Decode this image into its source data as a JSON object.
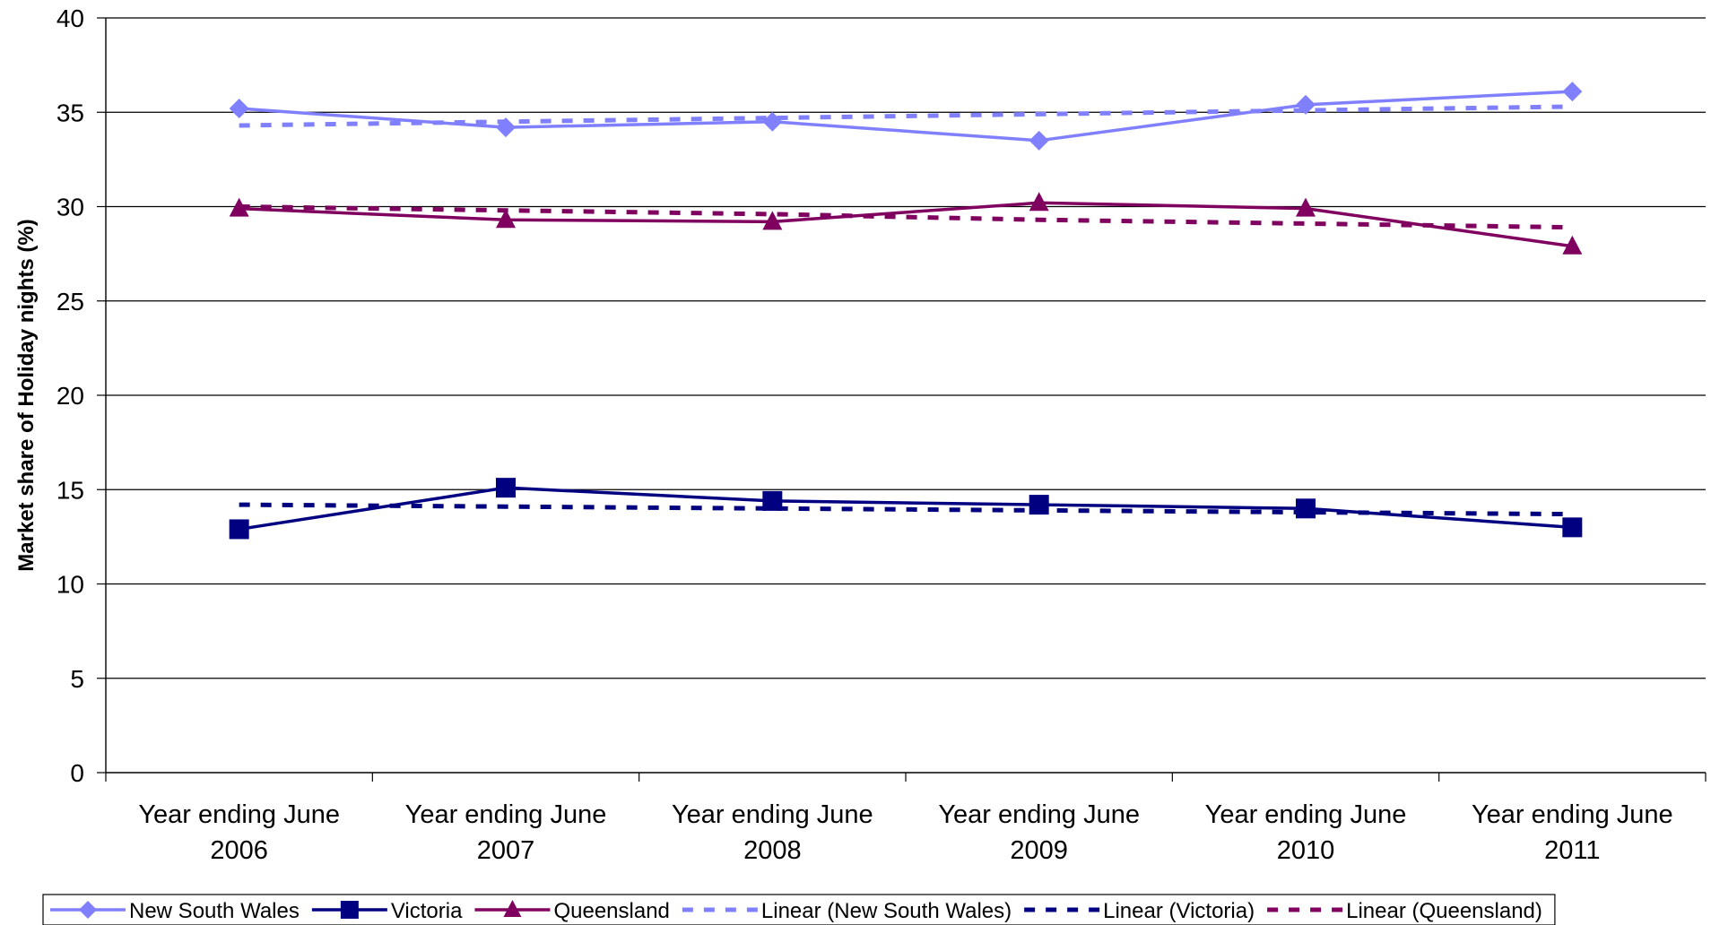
{
  "chart_data": {
    "type": "line",
    "ylabel": "Market share of Holiday nights (%)",
    "xlabel": "",
    "ylim": [
      0,
      40
    ],
    "yticks": [
      0,
      5,
      10,
      15,
      20,
      25,
      30,
      35,
      40
    ],
    "grid": true,
    "legend_position": "bottom",
    "categories": [
      [
        "Year ending June",
        "2006"
      ],
      [
        "Year ending June",
        "2007"
      ],
      [
        "Year ending June",
        "2008"
      ],
      [
        "Year ending June",
        "2009"
      ],
      [
        "Year ending June",
        "2010"
      ],
      [
        "Year ending June",
        "2011"
      ]
    ],
    "series": [
      {
        "name": "New South Wales",
        "values": [
          35.2,
          34.2,
          34.5,
          33.5,
          35.4,
          36.1
        ],
        "color": "#8080FF",
        "marker": "diamond",
        "style": "solid"
      },
      {
        "name": "Victoria",
        "values": [
          12.9,
          15.1,
          14.4,
          14.2,
          14.0,
          13.0
        ],
        "color": "#000080",
        "marker": "square",
        "style": "solid"
      },
      {
        "name": "Queensland",
        "values": [
          29.9,
          29.3,
          29.2,
          30.2,
          29.9,
          27.9
        ],
        "color": "#800060",
        "marker": "triangle",
        "style": "solid"
      },
      {
        "name": "Linear (New South Wales)",
        "values": [
          34.3,
          34.5,
          34.7,
          34.9,
          35.1,
          35.3
        ],
        "color": "#8080FF",
        "marker": "none",
        "style": "dashed"
      },
      {
        "name": "Linear (Victoria)",
        "values": [
          14.2,
          14.1,
          14.0,
          13.9,
          13.8,
          13.7
        ],
        "color": "#000080",
        "marker": "none",
        "style": "dashed"
      },
      {
        "name": "Linear (Queensland)",
        "values": [
          30.0,
          29.8,
          29.6,
          29.3,
          29.1,
          28.9
        ],
        "color": "#800060",
        "marker": "none",
        "style": "dashed"
      }
    ]
  }
}
